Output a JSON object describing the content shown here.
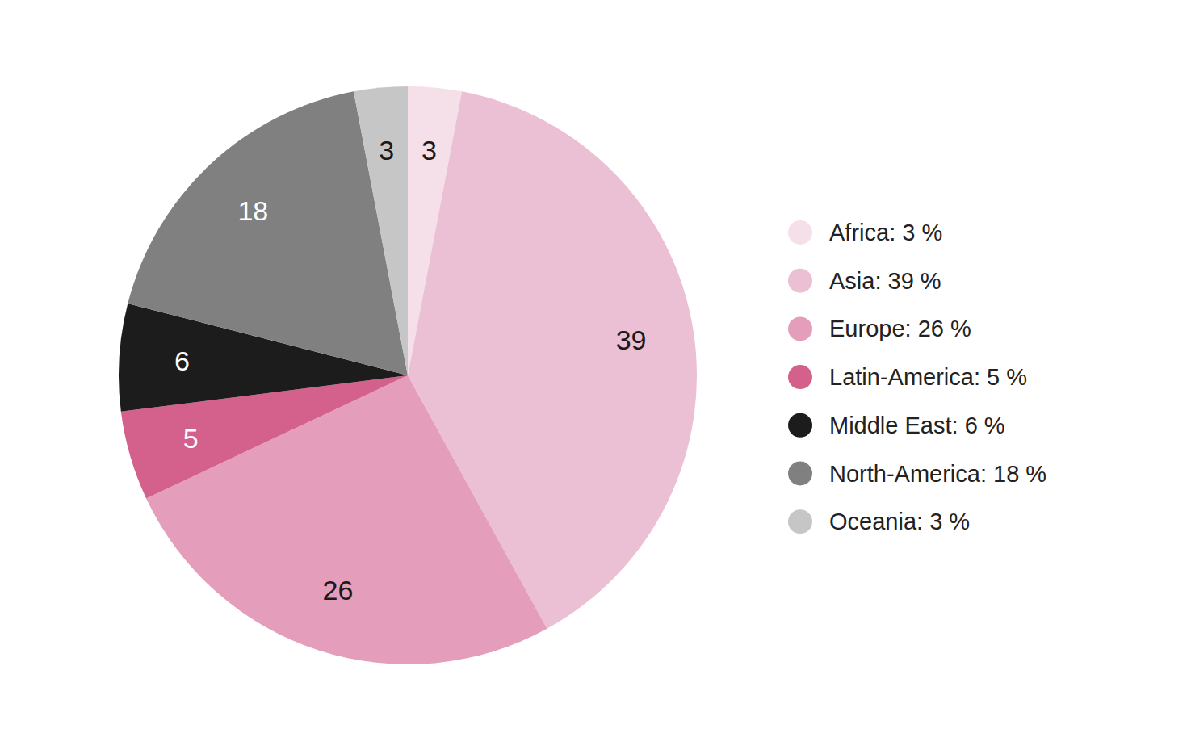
{
  "chart_data": {
    "type": "pie",
    "categories": [
      "Africa: 3 %",
      "Asia: 39 %",
      "Europe: 26 %",
      "Latin-America: 5 %",
      "Middle East: 6 %",
      "North-America: 18 %",
      "Oceania: 3 %"
    ],
    "values": [
      3,
      39,
      26,
      5,
      6,
      18,
      3
    ],
    "colors": [
      "#f5dfe8",
      "#ecc0d4",
      "#e49dbb",
      "#d4608c",
      "#1c1c1c",
      "#808080",
      "#c6c6c6"
    ],
    "data_labels": true,
    "legend": "right"
  }
}
